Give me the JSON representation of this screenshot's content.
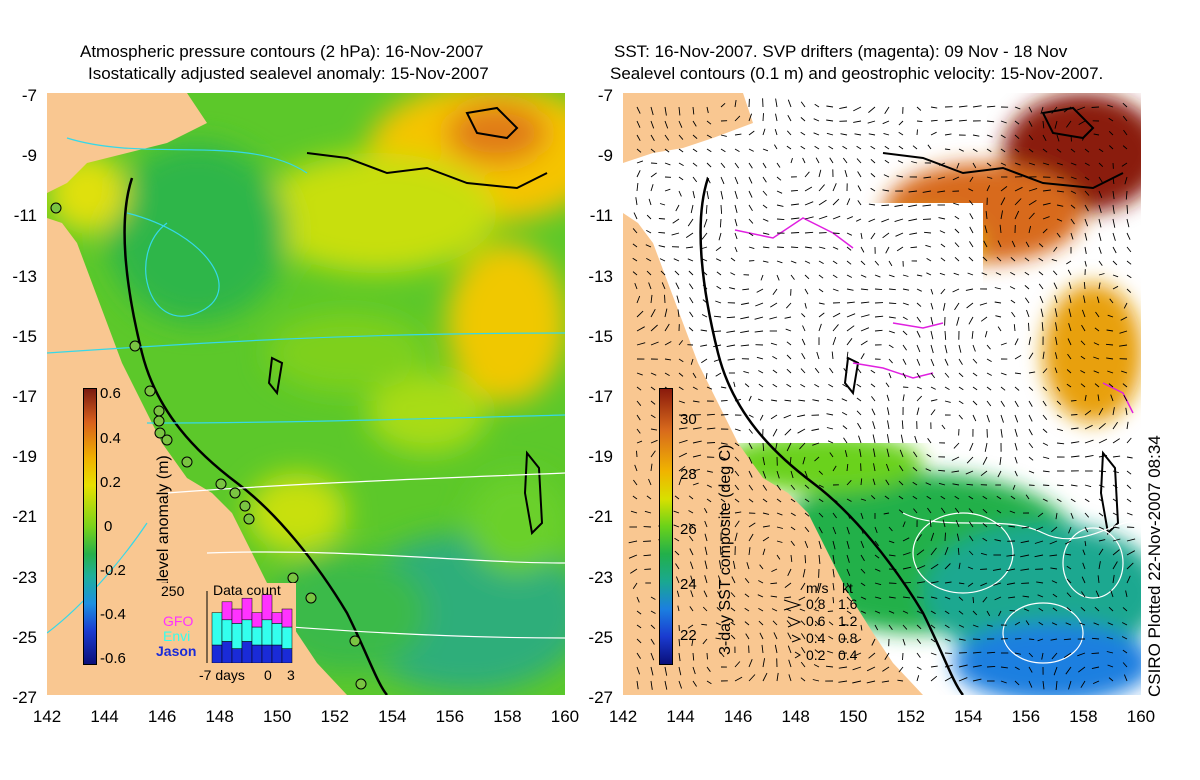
{
  "left_panel": {
    "title_line1": "Atmospheric pressure contours (2 hPa): 16-Nov-2007",
    "title_line2": "Isostatically adjusted sealevel anomaly: 15-Nov-2007",
    "colorbar_label": "Sealevel anomaly (m)",
    "colorbar_ticks": [
      "0.6",
      "0.4",
      "0.2",
      "0",
      "-0.2",
      "-0.4",
      "-0.6"
    ],
    "inset": {
      "title": "Data count",
      "ymax_label": "250",
      "legend": [
        {
          "name": "GFO",
          "color": "#ff33ff"
        },
        {
          "name": "Envi",
          "color": "#33ffee"
        },
        {
          "name": "Jason",
          "color": "#1a2bd8"
        }
      ],
      "x_labels": [
        "-7 days",
        "0",
        "3"
      ],
      "bars": [
        {
          "gfo": 0.0,
          "envi": 0.45,
          "jason": 0.25
        },
        {
          "gfo": 0.25,
          "envi": 0.3,
          "jason": 0.3
        },
        {
          "gfo": 0.2,
          "envi": 0.35,
          "jason": 0.2
        },
        {
          "gfo": 0.3,
          "envi": 0.3,
          "jason": 0.3
        },
        {
          "gfo": 0.2,
          "envi": 0.25,
          "jason": 0.25
        },
        {
          "gfo": 0.35,
          "envi": 0.35,
          "jason": 0.25
        },
        {
          "gfo": 0.15,
          "envi": 0.3,
          "jason": 0.25
        },
        {
          "gfo": 0.25,
          "envi": 0.3,
          "jason": 0.2
        }
      ]
    }
  },
  "right_panel": {
    "title_line1": "SST: 16-Nov-2007. SVP drifters (magenta): 09 Nov - 18 Nov",
    "title_line2": "Sealevel contours (0.1 m) and geostrophic velocity: 15-Nov-2007.",
    "colorbar_label": "3-day SST composite (deg C)",
    "colorbar_ticks": [
      "30",
      "28",
      "26",
      "24",
      "22"
    ],
    "velocity_legend": {
      "header_ms": "m/s",
      "header_kt": "kt",
      "rows": [
        {
          "ms": "0.8",
          "kt": "1.6"
        },
        {
          "ms": "0.6",
          "kt": "1.2"
        },
        {
          "ms": "0.4",
          "kt": "0.8"
        },
        {
          "ms": "0.2",
          "kt": "0.4"
        }
      ]
    },
    "credit": "CSIRO Plotted 22-Nov-2007 08:34"
  },
  "axes": {
    "y_ticks": [
      "-7",
      "-9",
      "-11",
      "-13",
      "-15",
      "-17",
      "-19",
      "-21",
      "-23",
      "-25",
      "-27"
    ],
    "x_ticks": [
      "142",
      "144",
      "146",
      "148",
      "150",
      "152",
      "154",
      "156",
      "158",
      "160"
    ],
    "lon_range": [
      142,
      160
    ],
    "lat_range": [
      -27,
      -7
    ]
  },
  "colors": {
    "land": "#f9c791",
    "sla_colorbar": [
      "#7a1a10",
      "#d8601c",
      "#f0b000",
      "#e8e000",
      "#7ad21a",
      "#27b04a",
      "#1fb09a",
      "#1e90e0",
      "#1a3bd0",
      "#0a0f7a"
    ],
    "sst_colorbar": [
      "#8a1a0c",
      "#d86a1c",
      "#f0b400",
      "#d8e000",
      "#6ad21a",
      "#22b04a",
      "#1aa890",
      "#1b7fe0",
      "#1a3bd0",
      "#0a0f7a"
    ],
    "drifter": "#e020e0"
  }
}
